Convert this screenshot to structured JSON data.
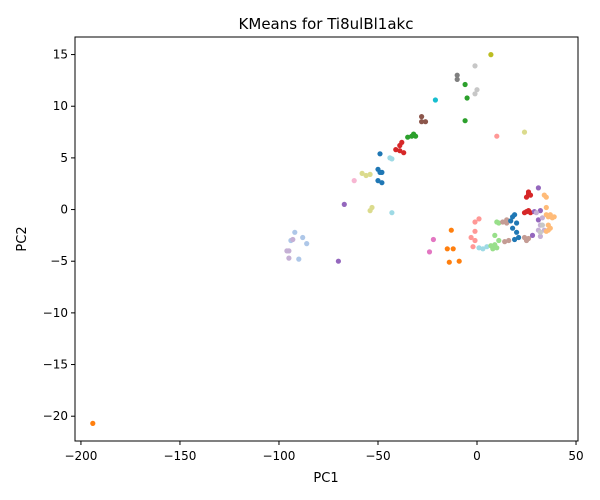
{
  "chart_data": {
    "type": "scatter",
    "title": "KMeans for Ti8ulBl1akc",
    "xlabel": "PC1",
    "ylabel": "PC2",
    "xlim": [
      -203,
      51
    ],
    "ylim": [
      -22.4,
      16.7
    ],
    "xticks": [
      -200,
      -150,
      -100,
      -50,
      0,
      50
    ],
    "yticks": [
      -20,
      -15,
      -10,
      -5,
      0,
      5,
      10,
      15
    ],
    "grid": false,
    "legend": "none",
    "points": [
      {
        "x": -194,
        "y": -20.7,
        "color": "#ff7f0e"
      },
      {
        "x": -92,
        "y": -2.2,
        "color": "#aec7e8"
      },
      {
        "x": -94,
        "y": -3.0,
        "color": "#aec7e8"
      },
      {
        "x": -88,
        "y": -2.7,
        "color": "#aec7e8"
      },
      {
        "x": -86,
        "y": -3.3,
        "color": "#aec7e8"
      },
      {
        "x": -90,
        "y": -4.8,
        "color": "#aec7e8"
      },
      {
        "x": -95,
        "y": -4.0,
        "color": "#c5b0d5"
      },
      {
        "x": -93,
        "y": -2.9,
        "color": "#c5b0d5"
      },
      {
        "x": -95,
        "y": -4.7,
        "color": "#c5b0d5"
      },
      {
        "x": -96,
        "y": -4.0,
        "color": "#c5b0d5"
      },
      {
        "x": -67,
        "y": 0.5,
        "color": "#9467bd"
      },
      {
        "x": -70,
        "y": -5.0,
        "color": "#9467bd"
      },
      {
        "x": -62,
        "y": 2.8,
        "color": "#f7b6d2"
      },
      {
        "x": -58,
        "y": 3.5,
        "color": "#dbdb8d"
      },
      {
        "x": -56,
        "y": 3.3,
        "color": "#dbdb8d"
      },
      {
        "x": -54,
        "y": 3.4,
        "color": "#dbdb8d"
      },
      {
        "x": -53,
        "y": 0.2,
        "color": "#dbdb8d"
      },
      {
        "x": -54,
        "y": -0.1,
        "color": "#dbdb8d"
      },
      {
        "x": -50,
        "y": 3.9,
        "color": "#1f77b4"
      },
      {
        "x": -49,
        "y": 3.6,
        "color": "#1f77b4"
      },
      {
        "x": -48,
        "y": 3.6,
        "color": "#1f77b4"
      },
      {
        "x": -49,
        "y": 5.4,
        "color": "#1f77b4"
      },
      {
        "x": -50,
        "y": 2.8,
        "color": "#1f77b4"
      },
      {
        "x": -48,
        "y": 2.6,
        "color": "#1f77b4"
      },
      {
        "x": -44,
        "y": 5.0,
        "color": "#9edae5"
      },
      {
        "x": -43,
        "y": 4.9,
        "color": "#9edae5"
      },
      {
        "x": -43,
        "y": -0.3,
        "color": "#9edae5"
      },
      {
        "x": -41,
        "y": 5.8,
        "color": "#d62728"
      },
      {
        "x": -39,
        "y": 6.2,
        "color": "#d62728"
      },
      {
        "x": -38,
        "y": 6.5,
        "color": "#d62728"
      },
      {
        "x": -39,
        "y": 5.7,
        "color": "#d62728"
      },
      {
        "x": -37,
        "y": 5.5,
        "color": "#d62728"
      },
      {
        "x": -35,
        "y": 7.0,
        "color": "#2ca02c"
      },
      {
        "x": -33,
        "y": 7.1,
        "color": "#2ca02c"
      },
      {
        "x": -32,
        "y": 7.3,
        "color": "#2ca02c"
      },
      {
        "x": -31,
        "y": 7.1,
        "color": "#2ca02c"
      },
      {
        "x": -28,
        "y": 9.0,
        "color": "#8c564b"
      },
      {
        "x": -28,
        "y": 8.5,
        "color": "#8c564b"
      },
      {
        "x": -26,
        "y": 8.5,
        "color": "#8c564b"
      },
      {
        "x": -21,
        "y": 10.6,
        "color": "#17becf"
      },
      {
        "x": -10,
        "y": 13.0,
        "color": "#7f7f7f"
      },
      {
        "x": -10,
        "y": 12.6,
        "color": "#7f7f7f"
      },
      {
        "x": -6,
        "y": 12.1,
        "color": "#2ca02c"
      },
      {
        "x": -5,
        "y": 10.8,
        "color": "#2ca02c"
      },
      {
        "x": -6,
        "y": 8.6,
        "color": "#2ca02c"
      },
      {
        "x": -1,
        "y": 13.9,
        "color": "#c7c7c7"
      },
      {
        "x": 0,
        "y": 11.6,
        "color": "#c7c7c7"
      },
      {
        "x": -1,
        "y": 11.2,
        "color": "#c7c7c7"
      },
      {
        "x": 7,
        "y": 15.0,
        "color": "#bcbd22"
      },
      {
        "x": 10,
        "y": 7.1,
        "color": "#ff9896"
      },
      {
        "x": 24,
        "y": 7.5,
        "color": "#dbdb8d"
      },
      {
        "x": -22,
        "y": -2.9,
        "color": "#e377c2"
      },
      {
        "x": -24,
        "y": -4.1,
        "color": "#e377c2"
      },
      {
        "x": -13,
        "y": -2.0,
        "color": "#ff7f0e"
      },
      {
        "x": -15,
        "y": -3.8,
        "color": "#ff7f0e"
      },
      {
        "x": -12,
        "y": -3.8,
        "color": "#ff7f0e"
      },
      {
        "x": -14,
        "y": -5.1,
        "color": "#ff7f0e"
      },
      {
        "x": -9,
        "y": -5.0,
        "color": "#ff7f0e"
      },
      {
        "x": -3,
        "y": -2.7,
        "color": "#ff9896"
      },
      {
        "x": -1,
        "y": -3.0,
        "color": "#ff9896"
      },
      {
        "x": -2,
        "y": -3.6,
        "color": "#ff9896"
      },
      {
        "x": -1,
        "y": -2.1,
        "color": "#ff9896"
      },
      {
        "x": -1,
        "y": -1.2,
        "color": "#ff9896"
      },
      {
        "x": 1,
        "y": -0.9,
        "color": "#ff9896"
      },
      {
        "x": 1,
        "y": -3.7,
        "color": "#9edae5"
      },
      {
        "x": 3,
        "y": -3.8,
        "color": "#9edae5"
      },
      {
        "x": 5,
        "y": -3.6,
        "color": "#9edae5"
      },
      {
        "x": 7,
        "y": -3.5,
        "color": "#98df8a"
      },
      {
        "x": 8,
        "y": -3.8,
        "color": "#98df8a"
      },
      {
        "x": 9,
        "y": -3.4,
        "color": "#98df8a"
      },
      {
        "x": 10,
        "y": -3.7,
        "color": "#98df8a"
      },
      {
        "x": 9,
        "y": -2.5,
        "color": "#98df8a"
      },
      {
        "x": 11,
        "y": -3.0,
        "color": "#98df8a"
      },
      {
        "x": 10,
        "y": -1.2,
        "color": "#98df8a"
      },
      {
        "x": 11,
        "y": -1.3,
        "color": "#98df8a"
      },
      {
        "x": 13,
        "y": -1.2,
        "color": "#c49c94"
      },
      {
        "x": 15,
        "y": -1.3,
        "color": "#c49c94"
      },
      {
        "x": 15,
        "y": -1.0,
        "color": "#c49c94"
      },
      {
        "x": 14,
        "y": -3.1,
        "color": "#c49c94"
      },
      {
        "x": 16,
        "y": -3.0,
        "color": "#c49c94"
      },
      {
        "x": 17,
        "y": -1.1,
        "color": "#1f77b4"
      },
      {
        "x": 18,
        "y": -0.7,
        "color": "#1f77b4"
      },
      {
        "x": 19,
        "y": -0.5,
        "color": "#1f77b4"
      },
      {
        "x": 18,
        "y": -1.8,
        "color": "#1f77b4"
      },
      {
        "x": 20,
        "y": -2.2,
        "color": "#1f77b4"
      },
      {
        "x": 21,
        "y": -2.7,
        "color": "#1f77b4"
      },
      {
        "x": 20,
        "y": -1.3,
        "color": "#1f77b4"
      },
      {
        "x": 19,
        "y": -2.9,
        "color": "#1f77b4"
      },
      {
        "x": 24,
        "y": -0.3,
        "color": "#d62728"
      },
      {
        "x": 25,
        "y": -0.2,
        "color": "#d62728"
      },
      {
        "x": 26,
        "y": -0.1,
        "color": "#d62728"
      },
      {
        "x": 27,
        "y": -0.3,
        "color": "#d62728"
      },
      {
        "x": 25,
        "y": 1.2,
        "color": "#d62728"
      },
      {
        "x": 26,
        "y": 1.5,
        "color": "#d62728"
      },
      {
        "x": 27,
        "y": 1.4,
        "color": "#d62728"
      },
      {
        "x": 26,
        "y": 1.7,
        "color": "#d62728"
      },
      {
        "x": 24,
        "y": -2.7,
        "color": "#c49c94"
      },
      {
        "x": 25,
        "y": -3.0,
        "color": "#c49c94"
      },
      {
        "x": 26,
        "y": -2.8,
        "color": "#c49c94"
      },
      {
        "x": 28,
        "y": -2.5,
        "color": "#9467bd"
      },
      {
        "x": 29,
        "y": -0.2,
        "color": "#9467bd"
      },
      {
        "x": 31,
        "y": 2.1,
        "color": "#9467bd"
      },
      {
        "x": 32,
        "y": -0.1,
        "color": "#9467bd"
      },
      {
        "x": 31,
        "y": -1.0,
        "color": "#9467bd"
      },
      {
        "x": 30,
        "y": -0.3,
        "color": "#c5b0d5"
      },
      {
        "x": 31,
        "y": -2.0,
        "color": "#c5b0d5"
      },
      {
        "x": 32,
        "y": -1.5,
        "color": "#c5b0d5"
      },
      {
        "x": 33,
        "y": -0.8,
        "color": "#c5b0d5"
      },
      {
        "x": 32,
        "y": -2.6,
        "color": "#c5b0d5"
      },
      {
        "x": 34,
        "y": -2.0,
        "color": "#c5b0d5"
      },
      {
        "x": 33,
        "y": -1.5,
        "color": "#c7c7c7"
      },
      {
        "x": 32,
        "y": -2.2,
        "color": "#c7c7c7"
      },
      {
        "x": 34,
        "y": 1.4,
        "color": "#ffbb78"
      },
      {
        "x": 35,
        "y": 1.2,
        "color": "#ffbb78"
      },
      {
        "x": 35,
        "y": 0.2,
        "color": "#ffbb78"
      },
      {
        "x": 35,
        "y": -0.5,
        "color": "#ffbb78"
      },
      {
        "x": 36,
        "y": -0.7,
        "color": "#ffbb78"
      },
      {
        "x": 37,
        "y": -0.5,
        "color": "#ffbb78"
      },
      {
        "x": 38,
        "y": -0.8,
        "color": "#ffbb78"
      },
      {
        "x": 39,
        "y": -0.7,
        "color": "#ffbb78"
      },
      {
        "x": 36,
        "y": -1.5,
        "color": "#ffbb78"
      },
      {
        "x": 37,
        "y": -1.8,
        "color": "#ffbb78"
      },
      {
        "x": 35,
        "y": -2.1,
        "color": "#ffbb78"
      },
      {
        "x": 36,
        "y": -2.0,
        "color": "#ffbb78"
      }
    ]
  }
}
